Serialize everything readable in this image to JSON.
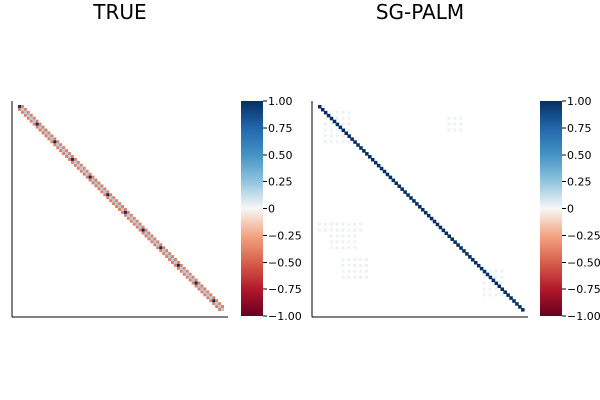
{
  "chart_data": [
    {
      "type": "heatmap",
      "title": "TRUE",
      "xlabel": "",
      "ylabel": "",
      "matrix_description": "structure estimated: sparse matrix with nonzeros along the main diagonal (blue, +1) and the first off-diagonals (light red, about -0.4); small blue blocks every ~6 rows",
      "n": 70,
      "diagonal_value": 1.0,
      "offdiagonal_value": -0.4,
      "colorbar": {
        "colormap": "RdBu",
        "range": [
          -1.0,
          1.0
        ],
        "ticks": [
          1.0,
          0.75,
          0.5,
          0.25,
          0,
          -0.25,
          -0.5,
          -0.75,
          -1.0
        ],
        "tick_labels": [
          "1.00",
          "0.75",
          "0.50",
          "0.25",
          "0",
          "−0.25",
          "−0.50",
          "−0.75",
          "−1.00"
        ]
      },
      "grid": false
    },
    {
      "type": "heatmap",
      "title": "SG-PALM",
      "xlabel": "",
      "ylabel": "",
      "matrix_description": "structure estimated: strong dark-blue main diagonal (~1.0) with faint near-zero noise patches",
      "n": 70,
      "diagonal_value": 1.0,
      "noise_value": 0.03,
      "colorbar": {
        "colormap": "RdBu",
        "range": [
          -1.0,
          1.0
        ],
        "ticks": [
          1.0,
          0.75,
          0.5,
          0.25,
          0,
          -0.25,
          -0.5,
          -0.75,
          -1.0
        ],
        "tick_labels": [
          "1.00",
          "0.75",
          "0.50",
          "0.25",
          "0",
          "−0.25",
          "−0.50",
          "−0.75",
          "−1.00"
        ]
      },
      "grid": false
    }
  ]
}
